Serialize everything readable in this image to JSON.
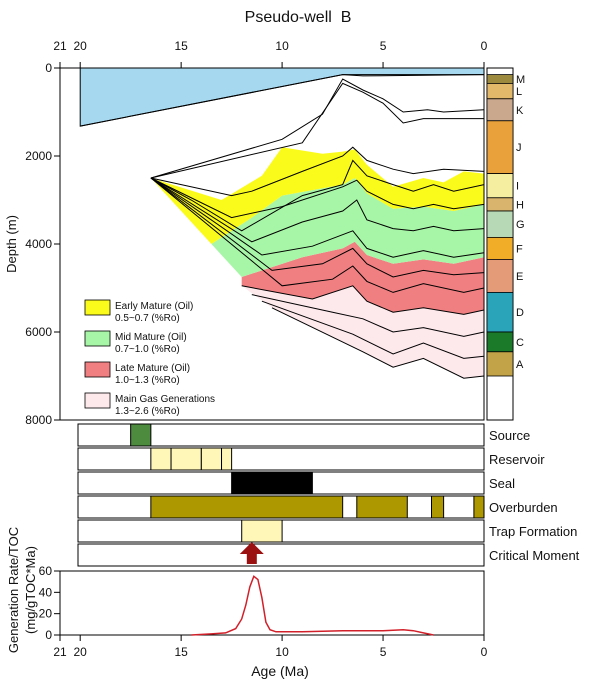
{
  "chart_data": {
    "type": "area",
    "title": "Pseudo-well  B",
    "x_axis": {
      "label": "Age (Ma)",
      "range": [
        21,
        0
      ],
      "ticks": [
        21,
        20,
        15,
        10,
        5,
        0
      ]
    },
    "burial_plot": {
      "ylabel": "Depth (m)",
      "y_range": [
        0,
        8000
      ],
      "y_ticks": [
        0,
        2000,
        4000,
        6000,
        8000
      ],
      "water_color": "#a6d8f0",
      "water_column": [
        [
          20,
          0,
          1320
        ],
        [
          7,
          0,
          150
        ],
        [
          0,
          0,
          150
        ]
      ],
      "horizons": [
        [
          [
            20,
            1320
          ],
          [
            7,
            150
          ],
          [
            6,
            180
          ],
          [
            4,
            170
          ],
          [
            0,
            150
          ]
        ],
        [
          [
            16.5,
            2500
          ],
          [
            14.5,
            3000
          ],
          [
            12,
            3700
          ],
          [
            9,
            2900
          ],
          [
            7,
            2650
          ],
          [
            6.5,
            2100
          ],
          [
            5.8,
            2450
          ],
          [
            4.5,
            2650
          ],
          [
            3.5,
            2800
          ],
          [
            2.5,
            2650
          ],
          [
            1.5,
            2800
          ],
          [
            0,
            2650
          ]
        ],
        [
          [
            16.5,
            2500
          ],
          [
            12.5,
            2900
          ],
          [
            11.5,
            2800
          ],
          [
            9,
            2350
          ],
          [
            7,
            2000
          ],
          [
            6.5,
            1800
          ],
          [
            5.8,
            2100
          ],
          [
            4.5,
            2300
          ],
          [
            3.5,
            2400
          ],
          [
            2,
            2300
          ],
          [
            0,
            2350
          ]
        ],
        [
          [
            16.5,
            2500
          ],
          [
            10,
            1620
          ],
          [
            8,
            1050
          ],
          [
            7,
            250
          ],
          [
            6,
            500
          ],
          [
            5,
            700
          ],
          [
            4,
            1000
          ],
          [
            2.8,
            950
          ],
          [
            2,
            1000
          ],
          [
            0,
            950
          ]
        ],
        [
          [
            16.5,
            2500
          ],
          [
            9,
            1700
          ],
          [
            7,
            350
          ],
          [
            6,
            550
          ],
          [
            5,
            800
          ],
          [
            4,
            1250
          ],
          [
            3,
            1150
          ],
          [
            2,
            1150
          ],
          [
            0,
            1150
          ]
        ],
        [
          [
            16.5,
            2500
          ],
          [
            12.5,
            3400
          ],
          [
            10,
            3150
          ],
          [
            7,
            2700
          ],
          [
            6.3,
            2550
          ],
          [
            5.8,
            2800
          ],
          [
            4.5,
            3100
          ],
          [
            3.5,
            3200
          ],
          [
            2.5,
            3100
          ],
          [
            1.5,
            3200
          ],
          [
            0,
            3100
          ]
        ],
        [
          [
            16.5,
            2500
          ],
          [
            11.5,
            3950
          ],
          [
            9,
            3500
          ],
          [
            7,
            3250
          ],
          [
            6.3,
            3000
          ],
          [
            5.8,
            3450
          ],
          [
            4.5,
            3650
          ],
          [
            3.5,
            3700
          ],
          [
            2.5,
            3600
          ],
          [
            1.5,
            3700
          ],
          [
            0,
            3650
          ]
        ],
        [
          [
            16.5,
            2500
          ],
          [
            11,
            4250
          ],
          [
            8.5,
            4050
          ],
          [
            6.5,
            3700
          ],
          [
            5.8,
            4100
          ],
          [
            4.5,
            4300
          ],
          [
            3,
            4150
          ],
          [
            1.5,
            4300
          ],
          [
            0,
            4200
          ]
        ],
        [
          [
            16.5,
            2500
          ],
          [
            10.5,
            4600
          ],
          [
            8,
            4450
          ],
          [
            6.5,
            4100
          ],
          [
            5.8,
            4450
          ],
          [
            4.5,
            4750
          ],
          [
            3,
            4600
          ],
          [
            1.5,
            4700
          ],
          [
            0,
            4650
          ]
        ],
        [
          [
            16.5,
            2500
          ],
          [
            10,
            4950
          ],
          [
            7.5,
            4800
          ],
          [
            6.5,
            4500
          ],
          [
            5.8,
            4850
          ],
          [
            4.5,
            5100
          ],
          [
            3,
            4900
          ],
          [
            1,
            5100
          ],
          [
            0,
            5000
          ]
        ],
        [
          [
            12,
            4950
          ],
          [
            8.5,
            5250
          ],
          [
            6.5,
            4950
          ],
          [
            5.8,
            5300
          ],
          [
            4.5,
            5550
          ],
          [
            3,
            5450
          ],
          [
            1,
            5600
          ],
          [
            0,
            5500
          ]
        ],
        [
          [
            11.5,
            5150
          ],
          [
            7.5,
            5550
          ],
          [
            6,
            5700
          ],
          [
            4.5,
            6000
          ],
          [
            3,
            5900
          ],
          [
            1,
            6100
          ],
          [
            0,
            6000
          ]
        ],
        [
          [
            11,
            5300
          ],
          [
            6.5,
            6050
          ],
          [
            4.5,
            6500
          ],
          [
            3,
            6250
          ],
          [
            1,
            6600
          ],
          [
            0,
            6550
          ]
        ],
        [
          [
            10.5,
            5450
          ],
          [
            6,
            6450
          ],
          [
            4.5,
            6800
          ],
          [
            3,
            6600
          ],
          [
            1,
            7050
          ],
          [
            0,
            7000
          ]
        ]
      ],
      "maturity_zones": [
        {
          "name": "Main Gas Generations",
          "color": "#fde8ec",
          "top": [
            [
              12,
              4950
            ],
            [
              8.5,
              5250
            ],
            [
              6.5,
              4950
            ],
            [
              5.8,
              5300
            ],
            [
              4.5,
              5550
            ],
            [
              3,
              5450
            ],
            [
              1,
              5600
            ],
            [
              0,
              5500
            ]
          ],
          "bottom": [
            [
              12,
              4950
            ],
            [
              10.5,
              5450
            ],
            [
              6,
              6450
            ],
            [
              4.5,
              6800
            ],
            [
              3,
              6600
            ],
            [
              1,
              7050
            ],
            [
              0,
              7000
            ]
          ]
        },
        {
          "name": "Late Mature (Oil)",
          "color": "#f07f82",
          "top": [
            [
              12,
              4750
            ],
            [
              9,
              4300
            ],
            [
              7,
              4100
            ],
            [
              6.4,
              3950
            ],
            [
              5.8,
              4250
            ],
            [
              4.5,
              4450
            ],
            [
              3,
              4350
            ],
            [
              1.5,
              4450
            ],
            [
              0,
              4300
            ]
          ],
          "bottom": [
            [
              12,
              4950
            ],
            [
              8.5,
              5250
            ],
            [
              6.5,
              4950
            ],
            [
              5.8,
              5300
            ],
            [
              4.5,
              5550
            ],
            [
              3,
              5450
            ],
            [
              1,
              5600
            ],
            [
              0,
              5500
            ]
          ]
        },
        {
          "name": "Mid Mature (Oil)",
          "color": "#a7f5a7",
          "top": [
            [
              13.5,
              4000
            ],
            [
              11.5,
              3400
            ],
            [
              10,
              2900
            ],
            [
              7,
              2650
            ],
            [
              6.4,
              2500
            ],
            [
              5.8,
              2850
            ],
            [
              4.5,
              3200
            ],
            [
              3,
              3150
            ],
            [
              1.5,
              3250
            ],
            [
              0,
              3100
            ]
          ],
          "bottom": [
            [
              13.5,
              4000
            ],
            [
              12,
              4750
            ],
            [
              9,
              4300
            ],
            [
              7,
              4100
            ],
            [
              6.4,
              3950
            ],
            [
              5.8,
              4250
            ],
            [
              4.5,
              4450
            ],
            [
              3,
              4350
            ],
            [
              1.5,
              4450
            ],
            [
              0,
              4300
            ]
          ]
        },
        {
          "name": "Early Mature (Oil)",
          "color": "#fbfb1b",
          "top": [
            [
              16.5,
              2500
            ],
            [
              13,
              3000
            ],
            [
              11,
              2450
            ],
            [
              10,
              1800
            ],
            [
              8,
              1950
            ],
            [
              7,
              1900
            ],
            [
              6.4,
              1850
            ],
            [
              5.8,
              2200
            ],
            [
              4.5,
              2700
            ],
            [
              3,
              2500
            ],
            [
              2,
              2600
            ],
            [
              1,
              2350
            ],
            [
              0,
              2400
            ]
          ],
          "bottom": [
            [
              16.5,
              2500
            ],
            [
              13.5,
              4000
            ],
            [
              11.5,
              3400
            ],
            [
              10,
              2900
            ],
            [
              7,
              2650
            ],
            [
              6.4,
              2500
            ],
            [
              5.8,
              2850
            ],
            [
              4.5,
              3200
            ],
            [
              3,
              3150
            ],
            [
              1.5,
              3250
            ],
            [
              0,
              3100
            ]
          ]
        }
      ],
      "legend": [
        {
          "name": "Early Mature (Oil)",
          "range": "0.5~0.7  (%Ro)",
          "color": "#fbfb1b"
        },
        {
          "name": "Mid Mature (Oil)",
          "range": "0.7~1.0  (%Ro)",
          "color": "#a7f5a7"
        },
        {
          "name": "Late Mature (Oil)",
          "range": "1.0~1.3  (%Ro)",
          "color": "#f07f82"
        },
        {
          "name": "Main Gas Generations",
          "range": "1.3~2.6  (%Ro)",
          "color": "#fde8ec"
        }
      ],
      "lithology_units": [
        {
          "label": "M",
          "top": 150,
          "base": 350,
          "color": "#9c8a3e"
        },
        {
          "label": "L",
          "top": 350,
          "base": 700,
          "color": "#e2b86a"
        },
        {
          "label": "K",
          "top": 700,
          "base": 1200,
          "color": "#c9a88d"
        },
        {
          "label": "J",
          "top": 1200,
          "base": 2400,
          "color": "#e9a23b"
        },
        {
          "label": "I",
          "top": 2400,
          "base": 2950,
          "color": "#f5eea0"
        },
        {
          "label": "H",
          "top": 2950,
          "base": 3250,
          "color": "#d8b46c"
        },
        {
          "label": "G",
          "top": 3250,
          "base": 3850,
          "color": "#b7d9b5"
        },
        {
          "label": "F",
          "top": 3850,
          "base": 4350,
          "color": "#f2ad28"
        },
        {
          "label": "E",
          "top": 4350,
          "base": 5100,
          "color": "#e49b78"
        },
        {
          "label": "D",
          "top": 5100,
          "base": 6000,
          "color": "#2aa4b8"
        },
        {
          "label": "C",
          "top": 6000,
          "base": 6450,
          "color": "#1b7a2a"
        },
        {
          "label": "A",
          "top": 6450,
          "base": 7000,
          "color": "#c2a347"
        }
      ]
    },
    "events_chart": {
      "rows": [
        {
          "label": "Source",
          "segments": [
            {
              "from": 17.5,
              "to": 16.5,
              "color": "#4d8c3e"
            }
          ]
        },
        {
          "label": "Reservoir",
          "segments": [
            {
              "from": 16.5,
              "to": 15.5,
              "color": "#fff7b8"
            },
            {
              "from": 15.5,
              "to": 14,
              "color": "#fff7b8"
            },
            {
              "from": 14,
              "to": 13,
              "color": "#fff7b8"
            },
            {
              "from": 13,
              "to": 12.5,
              "color": "#fff7b8"
            }
          ]
        },
        {
          "label": "Seal",
          "segments": [
            {
              "from": 12.5,
              "to": 8.5,
              "color": "#000000"
            }
          ]
        },
        {
          "label": "Overburden",
          "segments": [
            {
              "from": 16.5,
              "to": 7,
              "color": "#ad9800"
            },
            {
              "from": 6.3,
              "to": 3.8,
              "color": "#ad9800"
            },
            {
              "from": 2.6,
              "to": 2,
              "color": "#ad9800"
            },
            {
              "from": 0.5,
              "to": 0,
              "color": "#ad9800"
            }
          ]
        },
        {
          "label": "Trap Formation",
          "segments": [
            {
              "from": 12,
              "to": 10,
              "color": "#fff7b8"
            }
          ]
        },
        {
          "label": "Critical Moment",
          "segments": []
        }
      ],
      "critical_moment_age": 11.5,
      "critical_moment_color": "#9b1111"
    },
    "generation_plot": {
      "ylabel": "Generation Rate/TOC",
      "ylabel_unit": "(mg/gTOC*Ma)",
      "y_range": [
        0,
        60
      ],
      "y_ticks": [
        0,
        20,
        40,
        60
      ],
      "line_color": "#d2202a",
      "x": [
        14.5,
        13.5,
        12.8,
        12.3,
        12,
        11.8,
        11.6,
        11.4,
        11.2,
        11,
        10.8,
        10.6,
        10.3,
        10,
        9,
        7,
        5,
        4,
        3.5,
        3,
        2.5
      ],
      "y": [
        0,
        1,
        2,
        6,
        15,
        28,
        45,
        55,
        52,
        35,
        12,
        5,
        3,
        3,
        3,
        4,
        4,
        5,
        4,
        2,
        0
      ]
    }
  }
}
